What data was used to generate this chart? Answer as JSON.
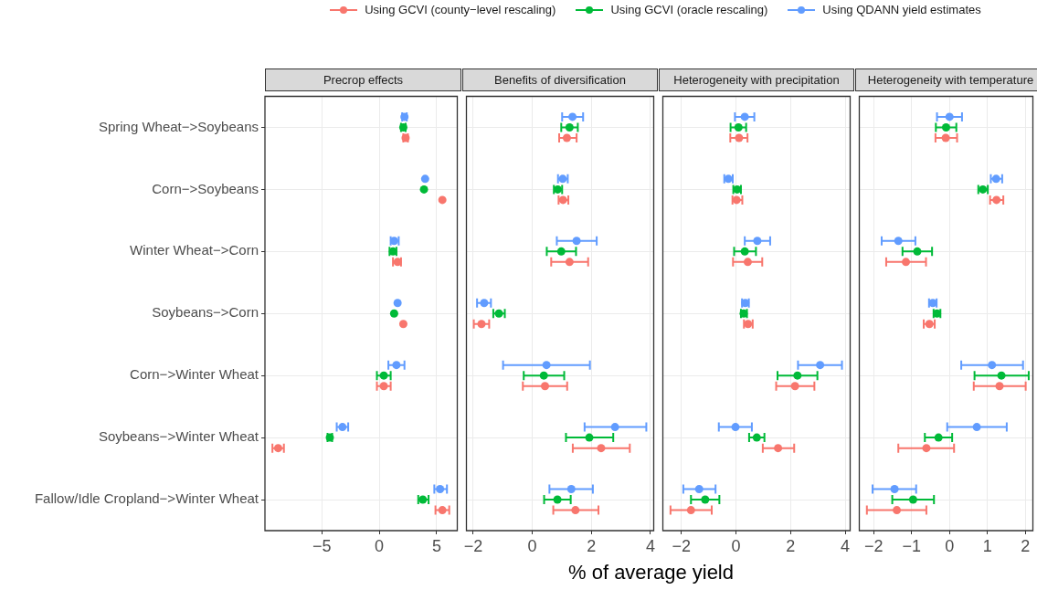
{
  "chart_data": [
    {
      "type": "scatter",
      "orientation": "horizontal",
      "title": "Precrop effects",
      "xlabel": "% of average yield",
      "categories": [
        "Spring Wheat−>Soybeans",
        "Corn−>Soybeans",
        "Winter Wheat−>Corn",
        "Soybeans−>Corn",
        "Corn−>Winter Wheat",
        "Soybeans−>Winter Wheat",
        "Fallow/Idle Cropland−>Winter Wheat"
      ],
      "xlim": [
        -9.95,
        6.8
      ],
      "xticks": [
        -5,
        0,
        5
      ],
      "grid": true,
      "legend": "top",
      "marker": "circle",
      "series": [
        {
          "name": "Using GCVI (county−level rescaling)",
          "color": "#f8766d",
          "values": [
            2.3,
            5.5,
            1.6,
            2.1,
            0.4,
            -8.8,
            5.5
          ],
          "errors": [
            [
              2.1,
              2.5
            ],
            null,
            [
              1.2,
              1.9
            ],
            null,
            [
              -0.2,
              1.0
            ],
            [
              -9.3,
              -8.3
            ],
            [
              4.9,
              6.1
            ]
          ]
        },
        {
          "name": "Using GCVI (oracle rescaling)",
          "color": "#00ba38",
          "values": [
            2.1,
            3.9,
            1.2,
            1.3,
            0.4,
            -4.3,
            3.8
          ],
          "errors": [
            [
              1.9,
              2.3
            ],
            null,
            [
              0.9,
              1.5
            ],
            null,
            [
              -0.2,
              1.0
            ],
            [
              -4.5,
              -4.1
            ],
            [
              3.4,
              4.3
            ]
          ]
        },
        {
          "name": "Using QDANN yield estimates",
          "color": "#619cff",
          "values": [
            2.2,
            4.0,
            1.3,
            1.6,
            1.5,
            -3.2,
            5.3
          ],
          "errors": [
            [
              2.0,
              2.4
            ],
            null,
            [
              1.0,
              1.7
            ],
            null,
            [
              0.8,
              2.2
            ],
            [
              -3.7,
              -2.7
            ],
            [
              4.8,
              5.9
            ]
          ]
        }
      ]
    },
    {
      "type": "scatter",
      "orientation": "horizontal",
      "title": "Benefits of diversification",
      "categories": [
        null,
        null,
        null,
        null,
        null,
        null,
        null
      ],
      "xlim": [
        -2.23,
        4.11
      ],
      "xticks": [
        -2,
        0,
        2,
        4
      ],
      "grid": true,
      "tick_labels": "x",
      "marker": "circle",
      "series": [
        {
          "color": "#f8766d",
          "values": [
            1.17,
            1.04,
            1.26,
            -1.72,
            0.43,
            2.33,
            1.46
          ],
          "errors": [
            [
              0.91,
              1.5
            ],
            [
              0.89,
              1.22
            ],
            [
              0.64,
              1.89
            ],
            [
              -1.98,
              -1.46
            ],
            [
              -0.32,
              1.18
            ],
            [
              1.37,
              3.3
            ],
            [
              0.71,
              2.24
            ]
          ]
        },
        {
          "color": "#00ba38",
          "values": [
            1.26,
            0.86,
            0.98,
            -1.13,
            0.39,
            1.93,
            0.85
          ],
          "errors": [
            [
              0.98,
              1.54
            ],
            [
              0.73,
              1.01
            ],
            [
              0.49,
              1.48
            ],
            [
              -1.32,
              -0.93
            ],
            [
              -0.29,
              1.08
            ],
            [
              1.14,
              2.74
            ],
            [
              0.4,
              1.3
            ]
          ]
        },
        {
          "color": "#619cff",
          "values": [
            1.36,
            1.03,
            1.5,
            -1.63,
            0.48,
            2.8,
            1.32
          ],
          "errors": [
            [
              1.01,
              1.72
            ],
            [
              0.87,
              1.2
            ],
            [
              0.83,
              2.18
            ],
            [
              -1.87,
              -1.4
            ],
            [
              -0.99,
              1.95
            ],
            [
              1.77,
              3.86
            ],
            [
              0.58,
              2.05
            ]
          ]
        }
      ]
    },
    {
      "type": "scatter",
      "orientation": "horizontal",
      "title": "Heterogeneity with precipitation",
      "categories": [
        null,
        null,
        null,
        null,
        null,
        null,
        null
      ],
      "xlim": [
        -2.68,
        4.18
      ],
      "xticks": [
        -2,
        0,
        2,
        4
      ],
      "grid": true,
      "tick_labels": "x",
      "marker": "circle",
      "series": [
        {
          "color": "#f8766d",
          "values": [
            0.11,
            0.02,
            0.43,
            0.44,
            2.16,
            1.54,
            -1.65
          ],
          "errors": [
            [
              -0.21,
              0.42
            ],
            [
              -0.13,
              0.23
            ],
            [
              -0.11,
              0.96
            ],
            [
              0.29,
              0.61
            ],
            [
              1.47,
              2.87
            ],
            [
              0.98,
              2.13
            ],
            [
              -2.4,
              -0.89
            ]
          ]
        },
        {
          "color": "#00ba38",
          "values": [
            0.09,
            0.04,
            0.32,
            0.28,
            2.25,
            0.76,
            -1.13
          ],
          "errors": [
            [
              -0.2,
              0.37
            ],
            [
              -0.1,
              0.18
            ],
            [
              -0.07,
              0.73
            ],
            [
              0.18,
              0.4
            ],
            [
              1.52,
              2.98
            ],
            [
              0.48,
              1.04
            ],
            [
              -1.65,
              -0.61
            ]
          ]
        },
        {
          "color": "#619cff",
          "values": [
            0.32,
            -0.28,
            0.78,
            0.34,
            3.08,
            -0.02,
            -1.35
          ],
          "errors": [
            [
              -0.04,
              0.67
            ],
            [
              -0.43,
              -0.12
            ],
            [
              0.32,
              1.25
            ],
            [
              0.22,
              0.47
            ],
            [
              2.27,
              3.88
            ],
            [
              -0.63,
              0.58
            ],
            [
              -1.93,
              -0.75
            ]
          ]
        }
      ]
    },
    {
      "type": "scatter",
      "orientation": "horizontal",
      "title": "Heterogeneity with temperature",
      "categories": [
        null,
        null,
        null,
        null,
        null,
        null,
        null
      ],
      "xlim": [
        -2.38,
        2.2
      ],
      "xticks": [
        -2,
        -1,
        0,
        1,
        2
      ],
      "grid": true,
      "tick_labels": "x",
      "marker": "circle",
      "series": [
        {
          "color": "#f8766d",
          "values": [
            -0.1,
            1.24,
            -1.15,
            -0.53,
            1.32,
            -0.61,
            -1.39
          ],
          "errors": [
            [
              -0.37,
              0.2
            ],
            [
              1.07,
              1.42
            ],
            [
              -1.67,
              -0.62
            ],
            [
              -0.68,
              -0.39
            ],
            [
              0.64,
              2.01
            ],
            [
              -1.35,
              0.12
            ],
            [
              -2.18,
              -0.61
            ]
          ]
        },
        {
          "color": "#00ba38",
          "values": [
            -0.09,
            0.88,
            -0.85,
            -0.33,
            1.37,
            -0.29,
            -0.96
          ],
          "errors": [
            [
              -0.36,
              0.18
            ],
            [
              0.76,
              1.01
            ],
            [
              -1.24,
              -0.46
            ],
            [
              -0.42,
              -0.24
            ],
            [
              0.66,
              2.09
            ],
            [
              -0.65,
              0.07
            ],
            [
              -1.51,
              -0.41
            ]
          ]
        },
        {
          "color": "#619cff",
          "values": [
            0.0,
            1.23,
            -1.35,
            -0.44,
            1.12,
            0.72,
            -1.45
          ],
          "errors": [
            [
              -0.33,
              0.33
            ],
            [
              1.09,
              1.39
            ],
            [
              -1.79,
              -0.9
            ],
            [
              -0.54,
              -0.34
            ],
            [
              0.31,
              1.94
            ],
            [
              -0.06,
              1.51
            ],
            [
              -2.03,
              -0.88
            ]
          ]
        }
      ]
    }
  ]
}
